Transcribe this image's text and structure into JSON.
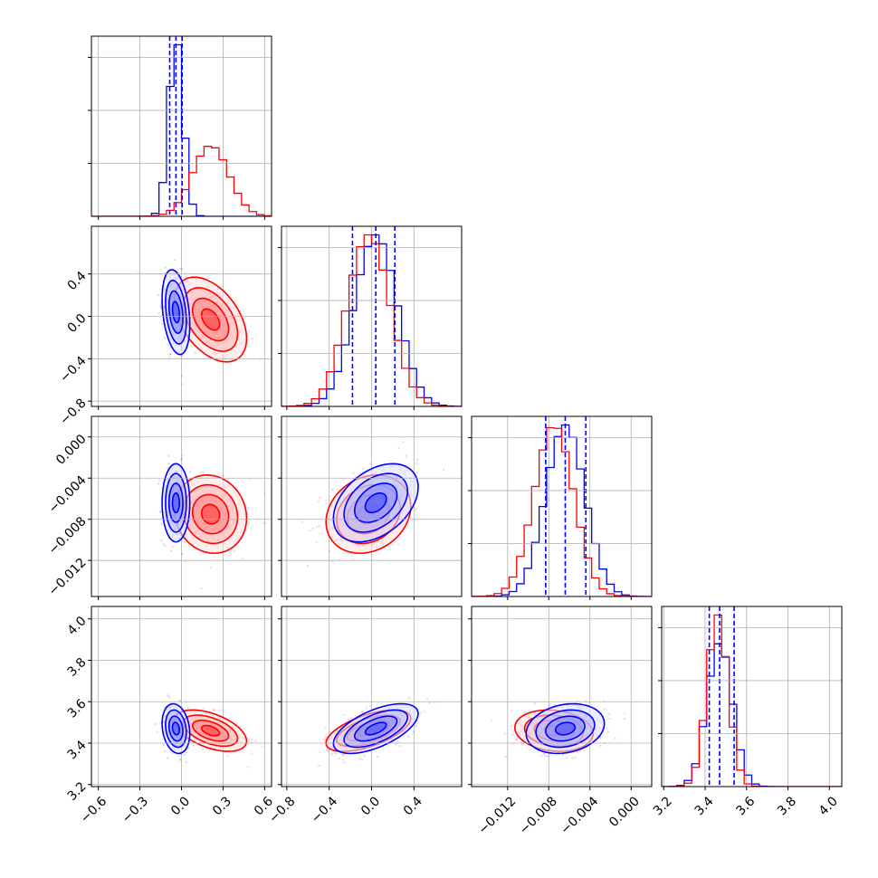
{
  "chart_data": {
    "type": "corner",
    "grid": true,
    "colors": {
      "series_a": "#0000ff",
      "series_b": "#ff0000"
    },
    "series": [
      {
        "color": "#0000ff",
        "quantiles": [
          [
            -0.085,
            -0.04,
            0.005
          ],
          [
            -0.18,
            0.04,
            0.22
          ],
          [
            -0.0083,
            -0.0064,
            -0.0044
          ],
          [
            3.42,
            3.47,
            3.54
          ]
        ],
        "means": [
          -0.04,
          0.04,
          -0.0064,
          3.47
        ],
        "sds": [
          0.05,
          0.2,
          0.0019,
          0.06
        ],
        "correlations": {
          "1_0": -0.3,
          "2_0": 0.0,
          "2_1": 0.4,
          "3_0": -0.2,
          "3_1": 0.6,
          "3_2": 0.2
        }
      },
      {
        "color": "#ff0000",
        "means": [
          0.21,
          -0.03,
          -0.0075,
          3.46
        ],
        "sds": [
          0.13,
          0.2,
          0.0019,
          0.05
        ],
        "correlations": {
          "1_0": -0.45,
          "2_0": -0.1,
          "2_1": 0.2,
          "3_0": -0.5,
          "3_1": 0.6,
          "3_2": -0.15
        }
      }
    ],
    "variables": [
      {
        "range": [
          -0.65,
          0.65
        ],
        "ticks": [
          -0.6,
          -0.3,
          0.0,
          0.3,
          0.6
        ],
        "tick_labels": [
          "−0.6",
          "−0.3",
          "0.0",
          "0.3",
          "0.6"
        ]
      },
      {
        "range": [
          -0.85,
          0.85
        ],
        "ticks": [
          -0.8,
          -0.4,
          0.0,
          0.4
        ],
        "tick_labels": [
          "−0.8",
          "−0.4",
          "0.0",
          "0.4"
        ]
      },
      {
        "range": [
          -0.0155,
          0.002
        ],
        "ticks": [
          -0.012,
          -0.008,
          -0.004,
          0.0
        ],
        "tick_labels": [
          "−0.012",
          "−0.008",
          "−0.004",
          "0.000"
        ]
      },
      {
        "range": [
          3.19,
          4.06
        ],
        "ticks": [
          3.2,
          3.4,
          3.6,
          3.8,
          4.0
        ],
        "tick_labels": [
          "3.2",
          "3.4",
          "3.6",
          "3.8",
          "4.0"
        ]
      }
    ]
  }
}
